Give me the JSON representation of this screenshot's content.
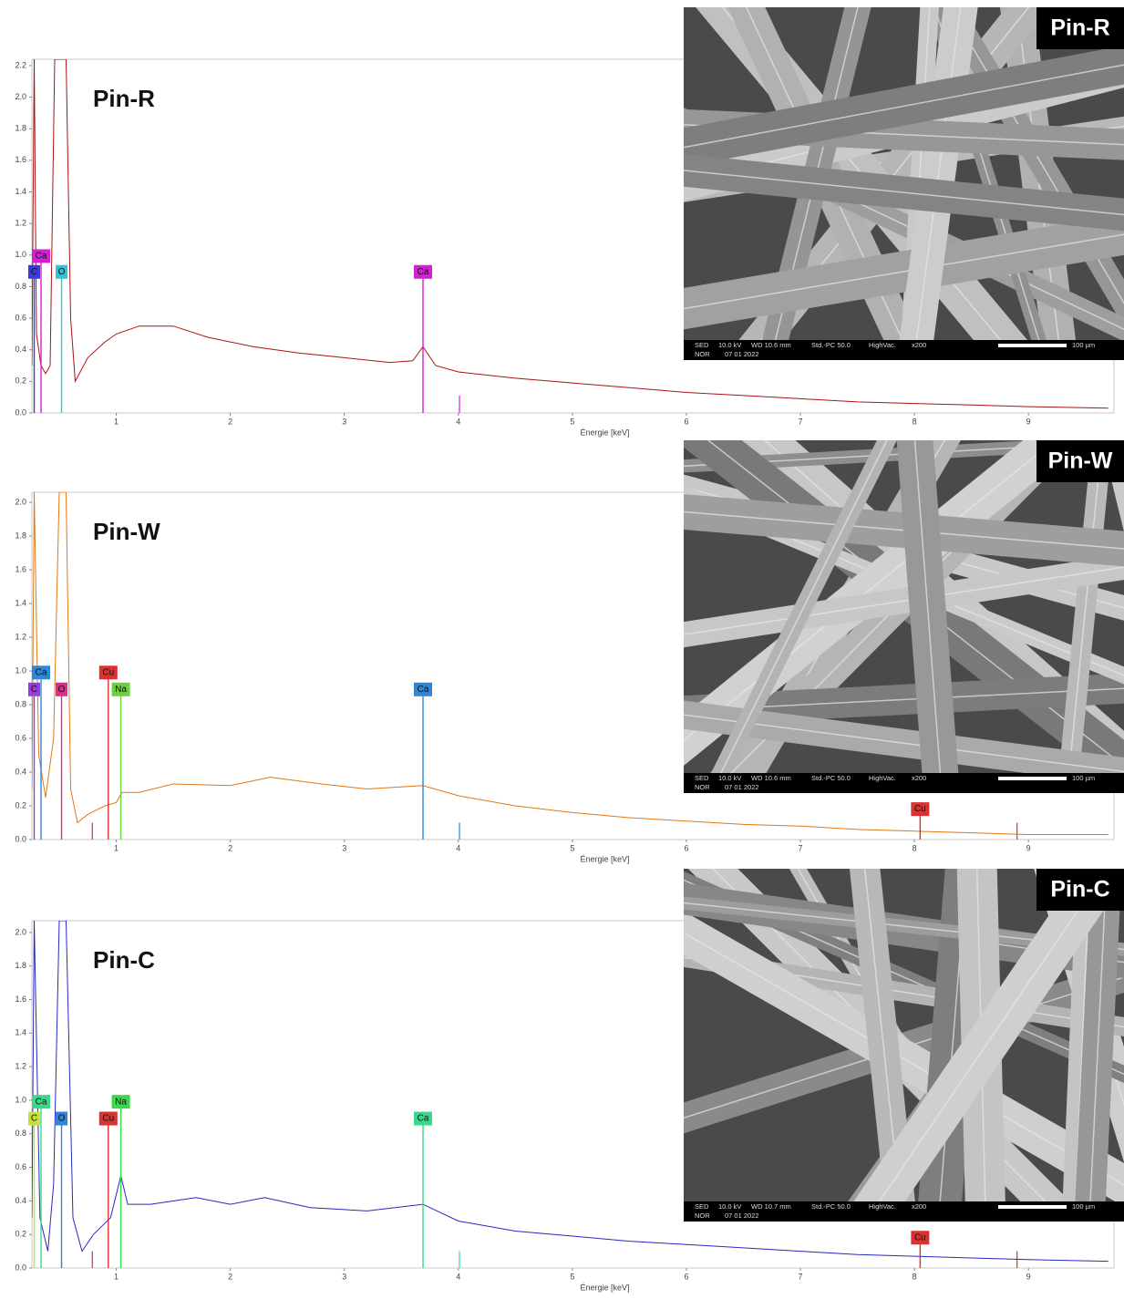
{
  "chart_data": [
    {
      "type": "line",
      "title": "Pin-R",
      "xlabel": "Énergie [keV]",
      "color": "#a81414",
      "xlim": [
        0.26,
        9.75
      ],
      "xticks": [
        1,
        2,
        3,
        4,
        5,
        6,
        7,
        8,
        9
      ],
      "ylim": [
        0,
        2.24
      ],
      "yticks": [
        {
          "value": 0,
          "label": "0.0"
        },
        {
          "value": 0.2,
          "label": "0.2"
        },
        {
          "value": 0.4,
          "label": "0.4"
        },
        {
          "value": 0.6,
          "label": "0.6"
        },
        {
          "value": 0.8,
          "label": "0.8"
        },
        {
          "value": 1.0,
          "label": "1.0"
        },
        {
          "value": 1.2,
          "label": "1.2"
        },
        {
          "value": 1.4,
          "label": "1.4"
        },
        {
          "value": 1.6,
          "label": "1.6"
        },
        {
          "value": 1.8,
          "label": "1.8"
        },
        {
          "value": 2.0,
          "label": "2.0"
        },
        {
          "value": 2.2,
          "label": "2.2"
        }
      ],
      "x": [
        0.26,
        0.28,
        0.3,
        0.34,
        0.38,
        0.42,
        0.46,
        0.5,
        0.56,
        0.6,
        0.64,
        0.75,
        0.9,
        1.0,
        1.2,
        1.5,
        1.8,
        2.2,
        2.6,
        3.0,
        3.4,
        3.6,
        3.69,
        3.8,
        4.0,
        4.5,
        5.0,
        5.5,
        6.0,
        6.5,
        7.0,
        7.5,
        8.0,
        8.5,
        9.0,
        9.7
      ],
      "values": [
        0.3,
        2.24,
        0.5,
        0.3,
        0.25,
        0.3,
        2.24,
        2.24,
        2.24,
        0.6,
        0.2,
        0.35,
        0.45,
        0.5,
        0.55,
        0.55,
        0.48,
        0.42,
        0.38,
        0.35,
        0.32,
        0.33,
        0.42,
        0.3,
        0.26,
        0.22,
        0.19,
        0.16,
        0.13,
        0.11,
        0.09,
        0.07,
        0.06,
        0.05,
        0.04,
        0.03
      ],
      "markers": [
        {
          "label": "C",
          "x": 0.28,
          "height": 0.85,
          "color": "#3b3bdc"
        },
        {
          "label": "Ca",
          "x": 0.34,
          "height": 0.95,
          "color": "#d41fd4"
        },
        {
          "label": "O",
          "x": 0.52,
          "height": 0.85,
          "color": "#27c8d8"
        },
        {
          "label": "Ca",
          "x": 3.69,
          "height": 0.85,
          "color": "#d41fd4"
        }
      ],
      "minor_markers": [
        {
          "x": 4.01,
          "height": 0.11,
          "color": "#d41fd4"
        }
      ],
      "image": {
        "label": "Pin-R",
        "info": [
          "SED",
          "10.0 kV",
          "WD 10.6 mm",
          "Std.-PC 50.0",
          "HighVac.",
          "x200"
        ],
        "info2": [
          "NOR",
          "07 01 2022"
        ],
        "scale": "100 µm"
      }
    },
    {
      "type": "line",
      "title": "Pin-W",
      "xlabel": "Énergie [keV]",
      "color": "#e07818",
      "xlim": [
        0.26,
        9.75
      ],
      "xticks": [
        1,
        2,
        3,
        4,
        5,
        6,
        7,
        8,
        9
      ],
      "ylim": [
        0,
        2.06
      ],
      "yticks": [
        {
          "value": 0,
          "label": "0.0"
        },
        {
          "value": 0.2,
          "label": "0.2"
        },
        {
          "value": 0.4,
          "label": "0.4"
        },
        {
          "value": 0.6,
          "label": "0.6"
        },
        {
          "value": 0.8,
          "label": "0.8"
        },
        {
          "value": 1.0,
          "label": "1.0"
        },
        {
          "value": 1.2,
          "label": "1.2"
        },
        {
          "value": 1.4,
          "label": "1.4"
        },
        {
          "value": 1.6,
          "label": "1.6"
        },
        {
          "value": 1.8,
          "label": "1.8"
        },
        {
          "value": 2.0,
          "label": "2.0"
        }
      ],
      "x": [
        0.26,
        0.28,
        0.32,
        0.38,
        0.45,
        0.5,
        0.56,
        0.6,
        0.66,
        0.75,
        0.9,
        1.0,
        1.05,
        1.2,
        1.5,
        2.0,
        2.35,
        2.8,
        3.2,
        3.69,
        4.0,
        4.5,
        5.0,
        5.5,
        6.0,
        6.5,
        7.0,
        7.5,
        8.0,
        8.5,
        9.0,
        9.7
      ],
      "values": [
        0.3,
        2.06,
        0.5,
        0.25,
        0.6,
        2.06,
        2.06,
        0.3,
        0.1,
        0.15,
        0.2,
        0.22,
        0.28,
        0.28,
        0.33,
        0.32,
        0.37,
        0.33,
        0.3,
        0.32,
        0.26,
        0.2,
        0.16,
        0.13,
        0.11,
        0.09,
        0.08,
        0.06,
        0.05,
        0.04,
        0.03,
        0.03
      ],
      "markers": [
        {
          "label": "C",
          "x": 0.28,
          "height": 0.85,
          "color": "#9a3be0"
        },
        {
          "label": "Ca",
          "x": 0.34,
          "height": 0.95,
          "color": "#2f86d8"
        },
        {
          "label": "O",
          "x": 0.52,
          "height": 0.85,
          "color": "#e02a8c"
        },
        {
          "label": "Cu",
          "x": 0.93,
          "height": 0.95,
          "color": "#d83232"
        },
        {
          "label": "Na",
          "x": 1.04,
          "height": 0.85,
          "color": "#6ad23a"
        },
        {
          "label": "Ca",
          "x": 3.69,
          "height": 0.85,
          "color": "#2f86d8"
        },
        {
          "label": "Cu",
          "x": 8.05,
          "height": 0.14,
          "color": "#d83232"
        }
      ],
      "minor_markers": [
        {
          "x": 0.79,
          "height": 0.1,
          "color": "#d83232"
        },
        {
          "x": 4.01,
          "height": 0.1,
          "color": "#2f86d8"
        },
        {
          "x": 8.9,
          "height": 0.1,
          "color": "#d83232"
        }
      ],
      "image": {
        "label": "Pin-W",
        "info": [
          "SED",
          "10.0 kV",
          "WD 10.6 mm",
          "Std.-PC 50.0",
          "HighVac.",
          "x200"
        ],
        "info2": [
          "NOR",
          "07 01 2022"
        ],
        "scale": "100 µm"
      }
    },
    {
      "type": "line",
      "title": "Pin-C",
      "xlabel": "Énergie [keV]",
      "color": "#2828c0",
      "xlim": [
        0.26,
        9.75
      ],
      "xticks": [
        1,
        2,
        3,
        4,
        5,
        6,
        7,
        8,
        9
      ],
      "ylim": [
        0,
        2.07
      ],
      "yticks": [
        {
          "value": 0,
          "label": "0.0"
        },
        {
          "value": 0.2,
          "label": "0.2"
        },
        {
          "value": 0.4,
          "label": "0.4"
        },
        {
          "value": 0.6,
          "label": "0.6"
        },
        {
          "value": 0.8,
          "label": "0.8"
        },
        {
          "value": 1.0,
          "label": "1.0"
        },
        {
          "value": 1.2,
          "label": "1.2"
        },
        {
          "value": 1.4,
          "label": "1.4"
        },
        {
          "value": 1.6,
          "label": "1.6"
        },
        {
          "value": 1.8,
          "label": "1.8"
        },
        {
          "value": 2.0,
          "label": "2.0"
        }
      ],
      "x": [
        0.26,
        0.28,
        0.33,
        0.4,
        0.45,
        0.5,
        0.56,
        0.62,
        0.7,
        0.8,
        0.95,
        1.04,
        1.1,
        1.3,
        1.7,
        2.0,
        2.3,
        2.7,
        3.2,
        3.69,
        4.0,
        4.5,
        5.0,
        5.5,
        6.0,
        6.5,
        7.0,
        7.5,
        8.0,
        8.5,
        9.0,
        9.7
      ],
      "values": [
        0.3,
        2.07,
        0.3,
        0.1,
        0.5,
        2.07,
        2.07,
        0.3,
        0.1,
        0.2,
        0.3,
        0.55,
        0.38,
        0.38,
        0.42,
        0.38,
        0.42,
        0.36,
        0.34,
        0.38,
        0.28,
        0.22,
        0.19,
        0.16,
        0.14,
        0.12,
        0.1,
        0.08,
        0.07,
        0.06,
        0.05,
        0.04
      ],
      "markers": [
        {
          "label": "C",
          "x": 0.28,
          "height": 0.85,
          "color": "#c8e03a"
        },
        {
          "label": "Ca",
          "x": 0.34,
          "height": 0.95,
          "color": "#3ad88a"
        },
        {
          "label": "O",
          "x": 0.52,
          "height": 0.85,
          "color": "#2f86d8"
        },
        {
          "label": "Cu",
          "x": 0.93,
          "height": 0.85,
          "color": "#d83232"
        },
        {
          "label": "Na",
          "x": 1.04,
          "height": 0.95,
          "color": "#3ad84a"
        },
        {
          "label": "Ca",
          "x": 3.69,
          "height": 0.85,
          "color": "#3ad88a"
        },
        {
          "label": "Cu",
          "x": 8.05,
          "height": 0.14,
          "color": "#d83232"
        }
      ],
      "minor_markers": [
        {
          "x": 0.79,
          "height": 0.1,
          "color": "#d83232"
        },
        {
          "x": 4.01,
          "height": 0.1,
          "color": "#3ad88a"
        },
        {
          "x": 8.9,
          "height": 0.1,
          "color": "#d83232"
        }
      ],
      "image": {
        "label": "Pin-C",
        "info": [
          "SED",
          "10.0 kV",
          "WD 10.7 mm",
          "Std.-PC 50.0",
          "HighVac.",
          "x200"
        ],
        "info2": [
          "NOR",
          "07 01 2022"
        ],
        "scale": "100 µm"
      }
    }
  ]
}
